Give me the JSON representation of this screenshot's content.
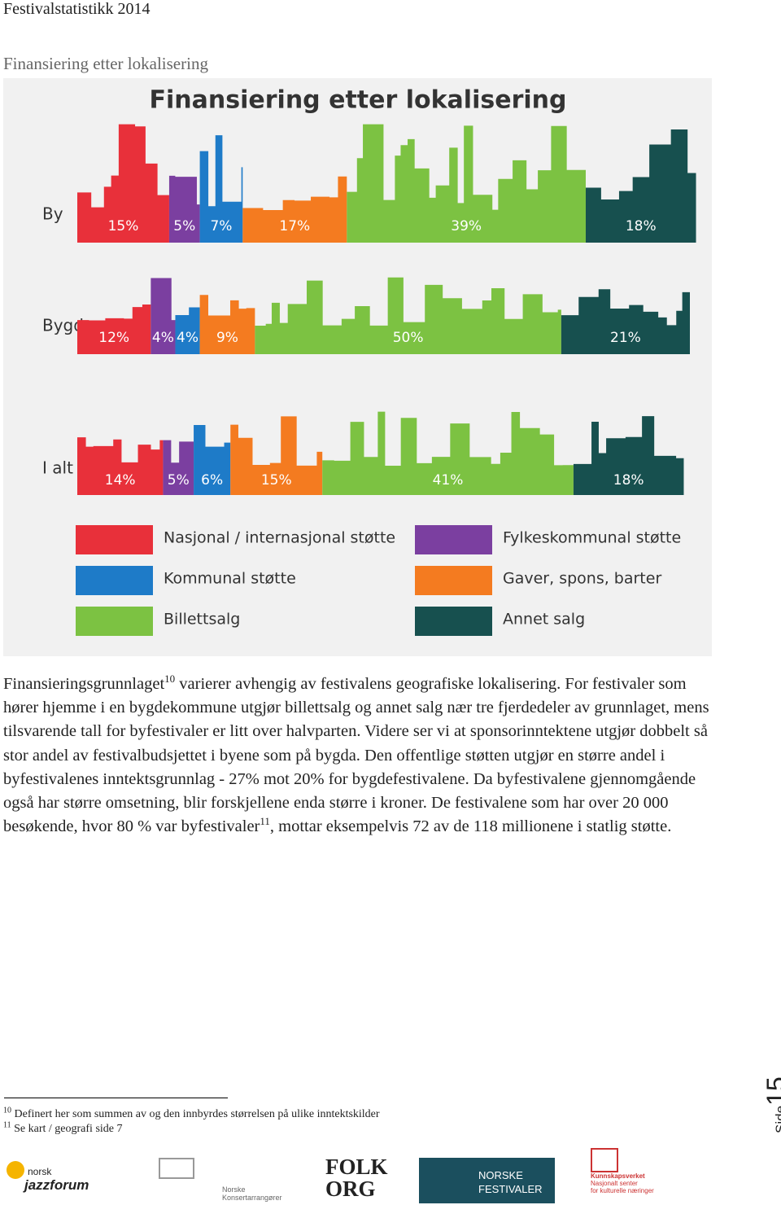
{
  "header": "Festivalstatistikk 2014",
  "heading": "Finansiering etter lokalisering",
  "chart_data": {
    "type": "bar",
    "orientation": "horizontal",
    "stacked": true,
    "title": "Finansiering etter lokalisering",
    "categories": [
      "By",
      "Bygd",
      "I alt"
    ],
    "xlim": [
      0,
      100
    ],
    "series": [
      {
        "name": "Nasjonal / internasjonal støtte",
        "color": "#e8303a",
        "values": [
          15,
          12,
          14
        ],
        "value_labels": [
          "15%",
          "12%",
          "14%"
        ]
      },
      {
        "name": "Fylkeskommunal støtte",
        "color": "#7b3fa0",
        "values": [
          5,
          4,
          5
        ],
        "value_labels": [
          "5%",
          "4%",
          "5%"
        ]
      },
      {
        "name": "Kommunal støtte",
        "color": "#1e7bc8",
        "values": [
          7,
          4,
          6
        ],
        "value_labels": [
          "7%",
          "4%",
          "6%"
        ]
      },
      {
        "name": "Gaver, spons, barter",
        "color": "#f47b20",
        "values": [
          17,
          9,
          15
        ],
        "value_labels": [
          "17%",
          "9%",
          "15%"
        ]
      },
      {
        "name": "Billettsalg",
        "color": "#7cc242",
        "values": [
          39,
          50,
          41
        ],
        "value_labels": [
          "39%",
          "50%",
          "41%"
        ]
      },
      {
        "name": "Annet salg",
        "color": "#17504f",
        "values": [
          18,
          21,
          18
        ],
        "value_labels": [
          "18%",
          "21%",
          "18%"
        ]
      }
    ]
  },
  "body": {
    "text1": "Finansieringsgrunnlaget",
    "ref1": "10",
    "text2": " varierer avhengig av festivalens geografiske lokalisering. For festivaler som hører hjemme i en bygdekommune utgjør billettsalg og annet salg nær tre fjerdedeler av grunnlaget, mens tilsvarende tall for byfestivaler er litt over halvparten. Videre ser vi at sponsorinntektene utgjør dobbelt så stor andel av festivalbudsjettet i byene som på bygda. Den offentlige støtten utgjør en større andel i byfestivalenes inntektsgrunnlag - 27% mot 20% for bygdefestivalene. Da byfestivalene gjennomgående også har større omsetning, blir forskjellene enda større i kroner. De festivalene som har over 20 000 besøkende, hvor 80 % var byfestivaler",
    "ref2": "11",
    "text3": ", mottar eksempelvis 72 av de 118 millionene i statlig støtte."
  },
  "footnotes": [
    {
      "number": "10",
      "text": "Definert her som summen av og den innbyrdes størrelsen på ulike inntektskilder"
    },
    {
      "number": "11",
      "text": "Se kart / geografi side 7"
    }
  ],
  "page": {
    "label": "Side",
    "number": "15"
  },
  "logos": {
    "jazz1": "norsk",
    "jazz2": "jazzforum",
    "nka": "Norske Konsertarrangører",
    "folk1": "FOLK",
    "folk2": "ORG",
    "nf1": "NORSKE",
    "nf2": "FESTIVALER",
    "kv1": "Kunnskapsverket",
    "kv2": "Nasjonalt senter",
    "kv3": "for kulturelle næringer"
  }
}
